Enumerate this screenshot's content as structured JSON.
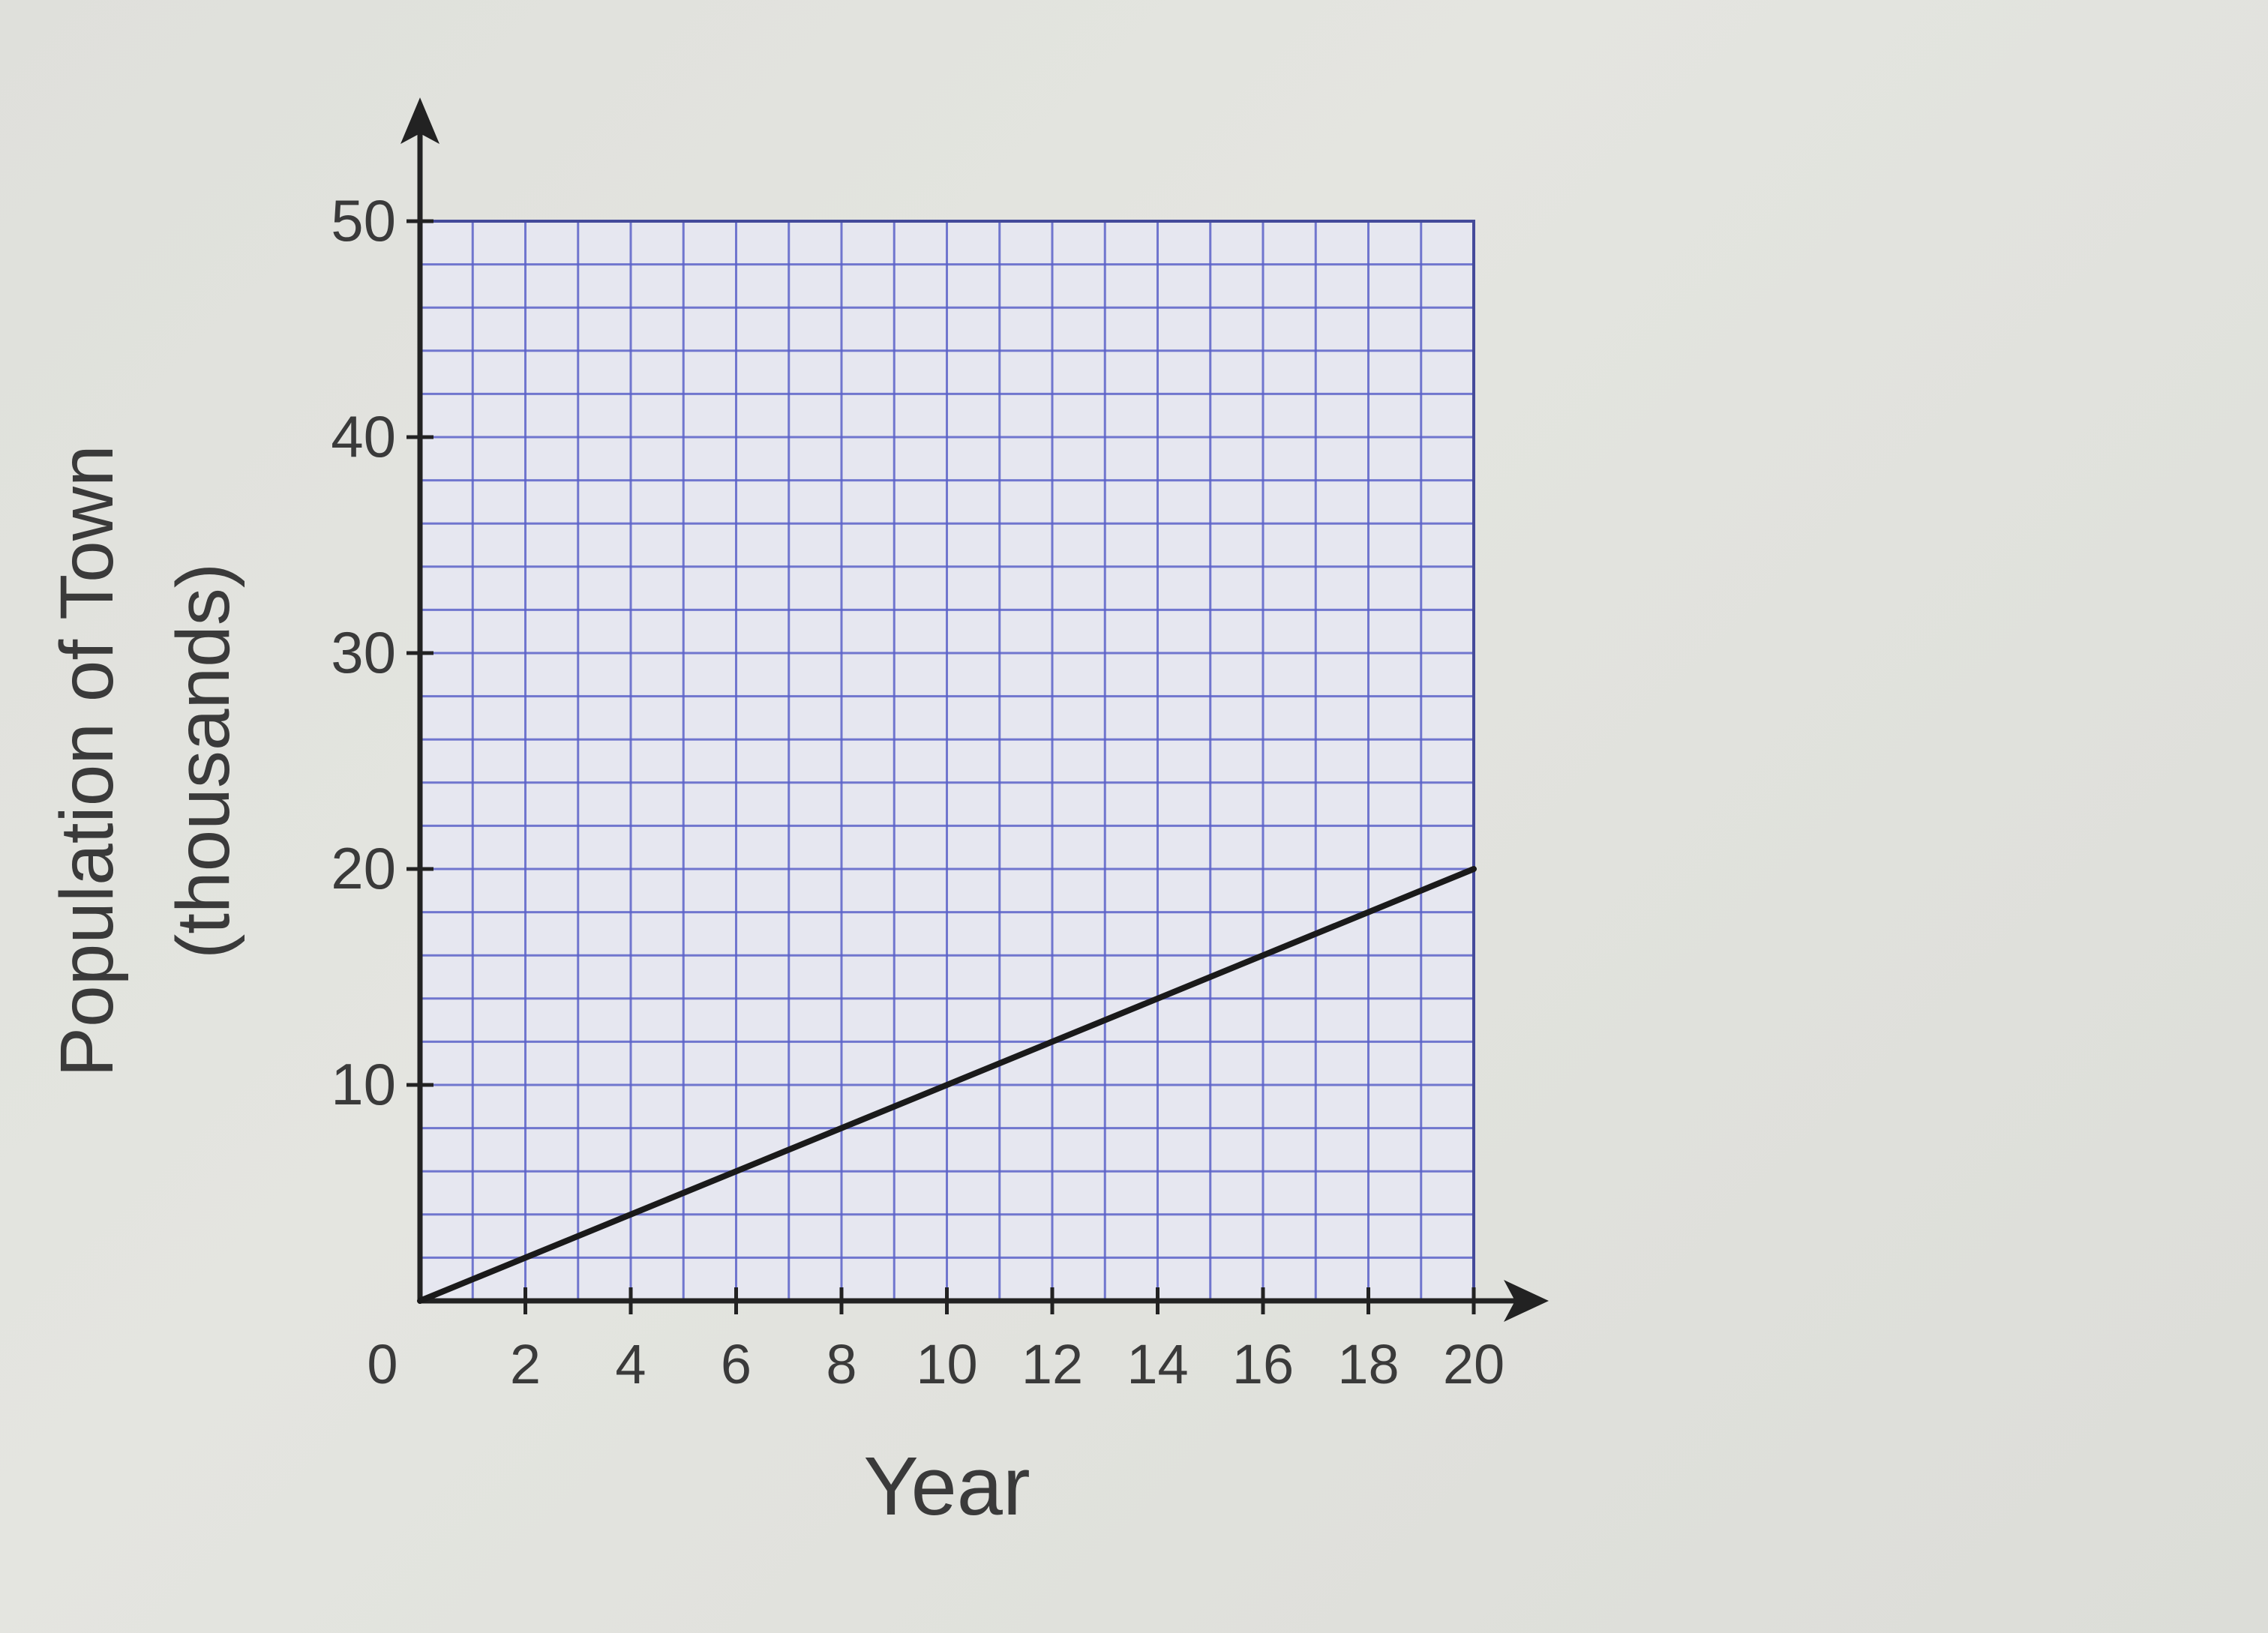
{
  "chart_data": {
    "type": "line",
    "title": "",
    "xlabel": "Year",
    "ylabel": "Population of Town",
    "ylabel_line2": "(thousands)",
    "xlim": [
      0,
      20
    ],
    "ylim": [
      0,
      50
    ],
    "x_ticks": [
      0,
      2,
      4,
      6,
      8,
      10,
      12,
      14,
      16,
      18,
      20
    ],
    "y_ticks": [
      10,
      20,
      30,
      40,
      50
    ],
    "grid": true,
    "grid_minor_x": 1,
    "grid_minor_y": 2,
    "series": [
      {
        "x": [
          0,
          20
        ],
        "y": [
          0,
          20
        ]
      }
    ],
    "colors": {
      "grid": "#5b61c8",
      "axis": "#222222",
      "line": "#1a1a1a",
      "plot_bg": "#e6e7f0"
    }
  }
}
